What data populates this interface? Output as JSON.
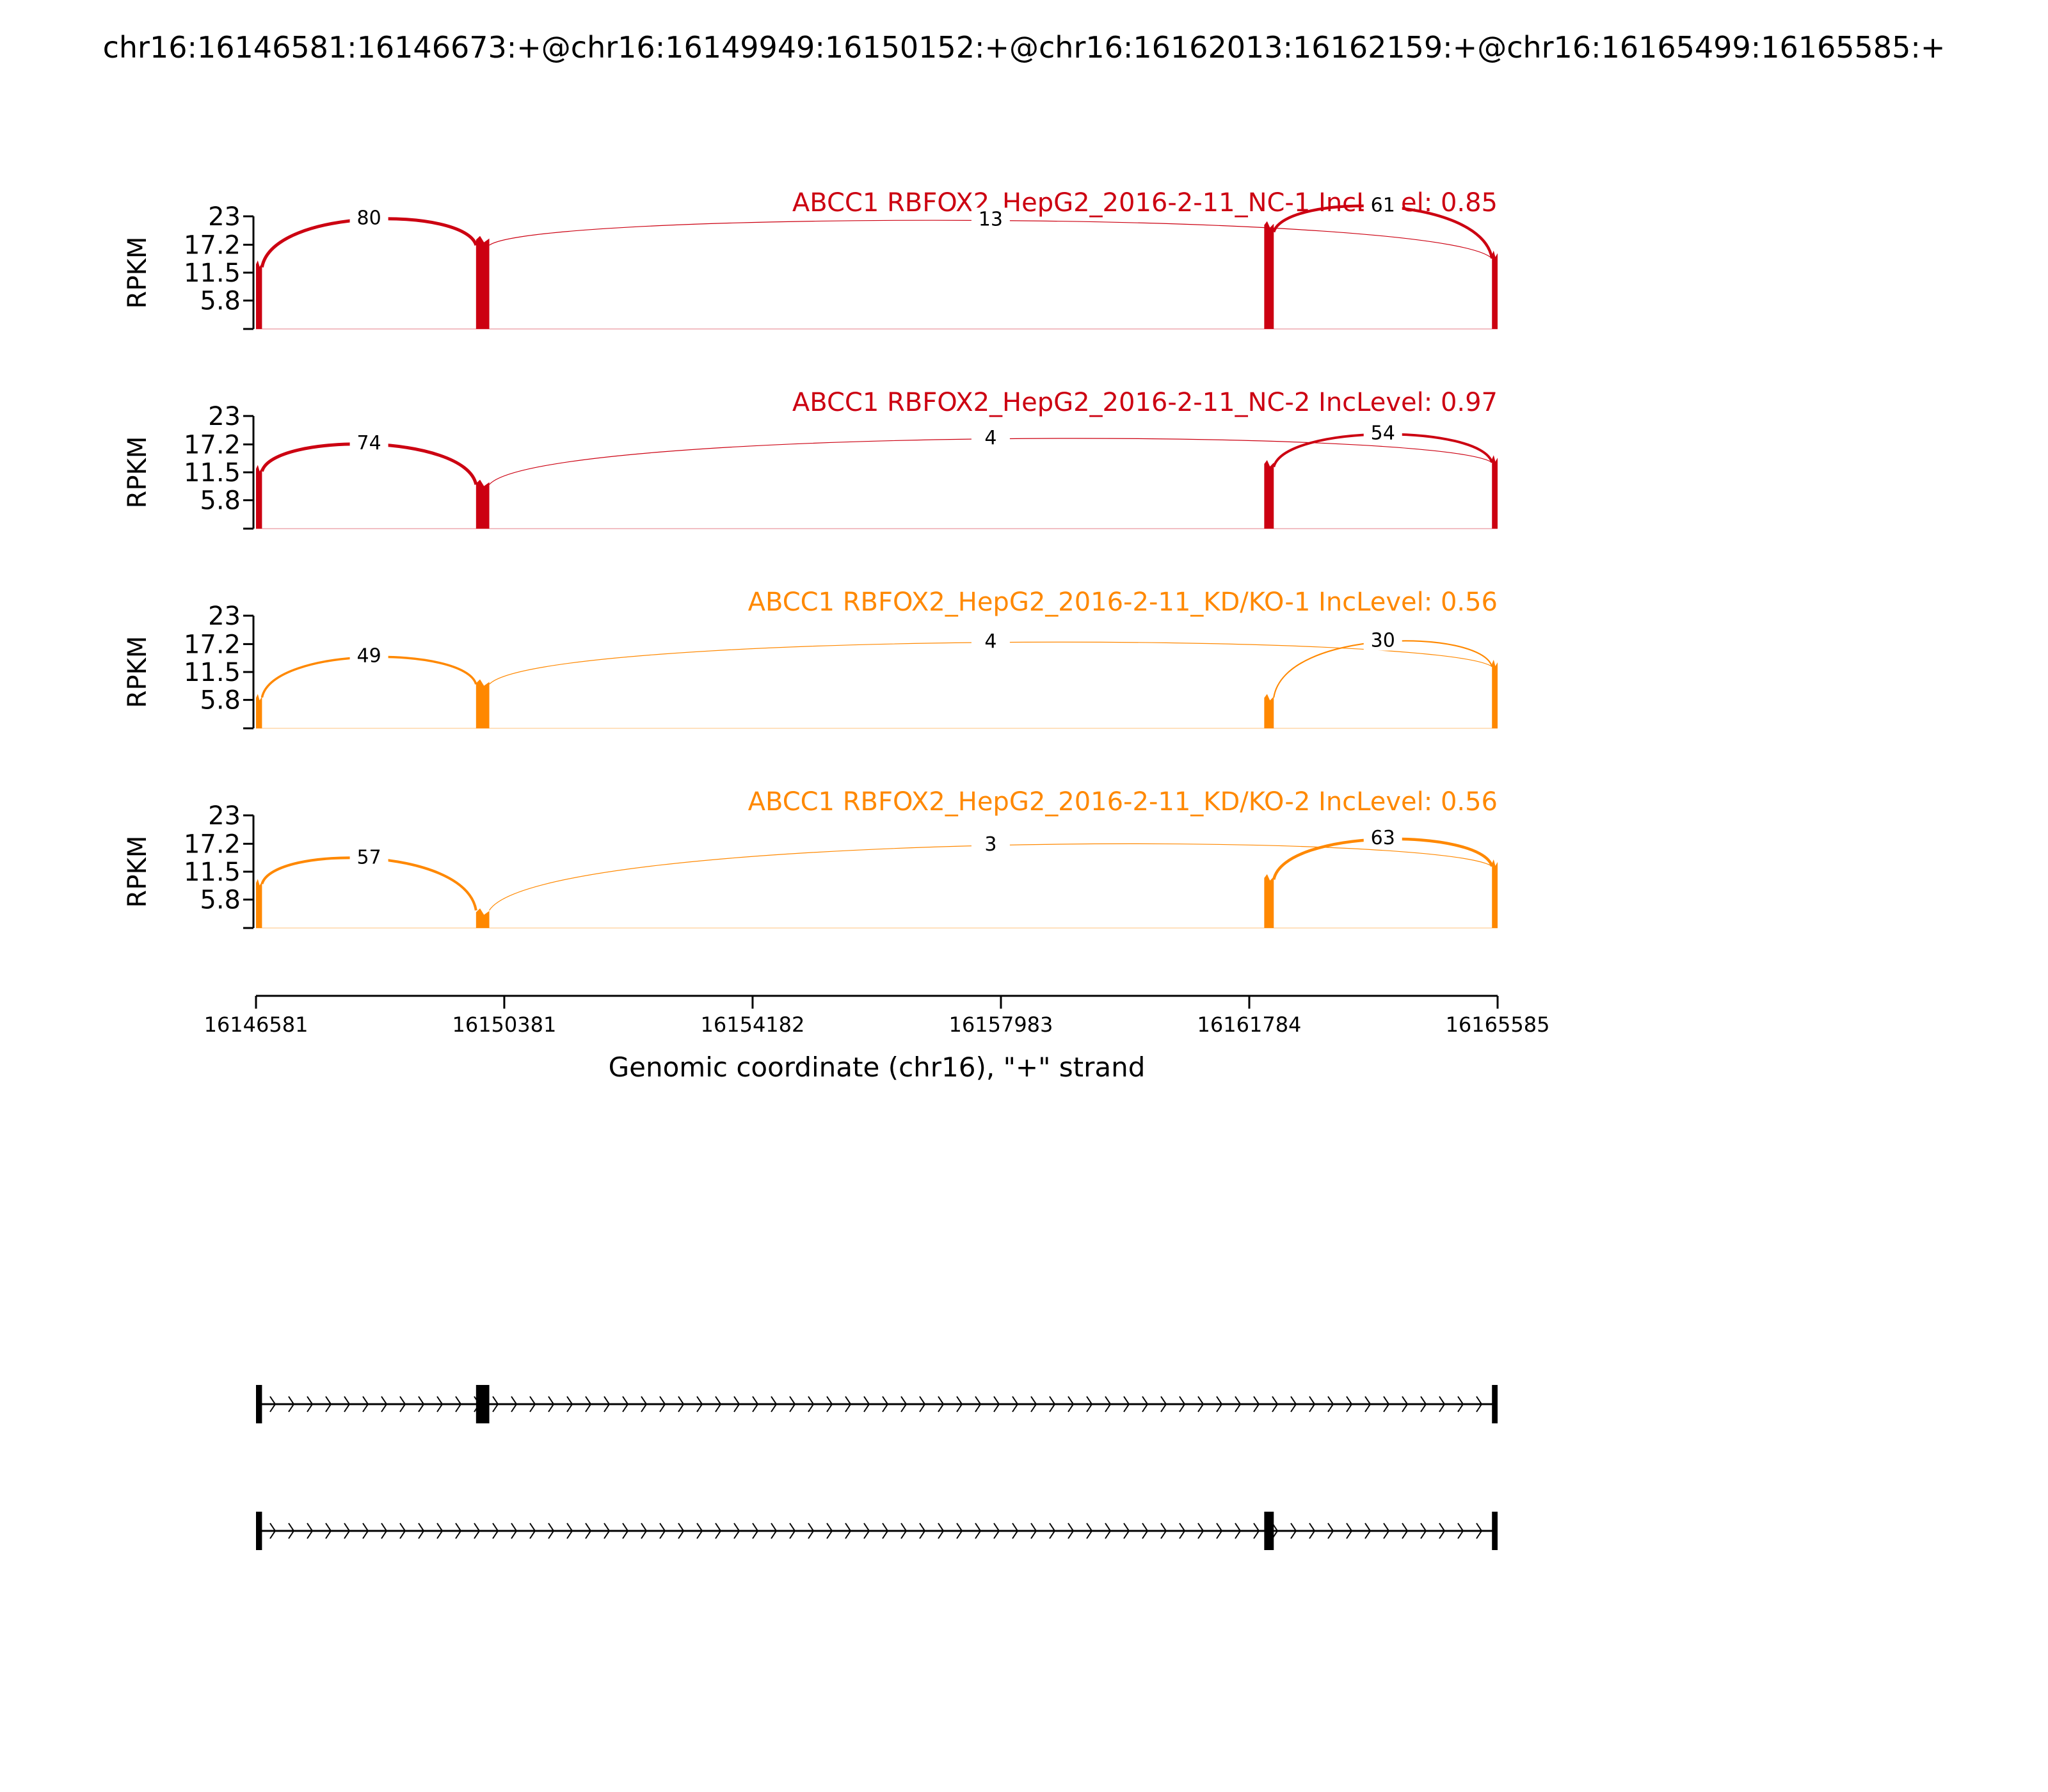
{
  "chart_data": {
    "type": "area",
    "title": "chr16:16146581:16146673:+@chr16:16149949:16150152:+@chr16:16162013:16162159:+@chr16:16165499:16165585:+",
    "xlabel": "Genomic coordinate (chr16), \"+\" strand",
    "ylabel": "RPKM",
    "xlim": [
      16146581,
      16165585
    ],
    "x_ticks": [
      "16146581",
      "16150381",
      "16154182",
      "16157983",
      "16161784",
      "16165585"
    ],
    "ylim": [
      0,
      23
    ],
    "y_ticks": [
      "23",
      "17.2",
      "11.5",
      "5.8"
    ],
    "series": [
      {
        "name": "ABCC1 RBFOX2_HepG2_2016-2-11_NC-1 IncLevel: 0.85",
        "color": "#cc0011",
        "exon_peaks": [
          {
            "start": 16146581,
            "end": 16146673,
            "rpkm": 14
          },
          {
            "start": 16149949,
            "end": 16150152,
            "rpkm": 19
          },
          {
            "start": 16162013,
            "end": 16162159,
            "rpkm": 22
          },
          {
            "start": 16165499,
            "end": 16165585,
            "rpkm": 16
          }
        ],
        "junctions": [
          {
            "from": 16146673,
            "to": 16149949,
            "reads": "80"
          },
          {
            "from": 16150152,
            "to": 16165499,
            "reads": "13"
          },
          {
            "from": 16162159,
            "to": 16165499,
            "reads": "61"
          }
        ]
      },
      {
        "name": "ABCC1 RBFOX2_HepG2_2016-2-11_NC-2 IncLevel: 0.97",
        "color": "#cc0011",
        "exon_peaks": [
          {
            "start": 16146581,
            "end": 16146673,
            "rpkm": 13
          },
          {
            "start": 16149949,
            "end": 16150152,
            "rpkm": 10
          },
          {
            "start": 16162013,
            "end": 16162159,
            "rpkm": 14
          },
          {
            "start": 16165499,
            "end": 16165585,
            "rpkm": 15
          }
        ],
        "junctions": [
          {
            "from": 16146673,
            "to": 16149949,
            "reads": "74"
          },
          {
            "from": 16150152,
            "to": 16165499,
            "reads": "4"
          },
          {
            "from": 16162159,
            "to": 16165499,
            "reads": "54"
          }
        ]
      },
      {
        "name": "ABCC1 RBFOX2_HepG2_2016-2-11_KD/KO-1 IncLevel: 0.56",
        "color": "#ff8800",
        "exon_peaks": [
          {
            "start": 16146581,
            "end": 16146673,
            "rpkm": 7
          },
          {
            "start": 16149949,
            "end": 16150152,
            "rpkm": 10
          },
          {
            "start": 16162013,
            "end": 16162159,
            "rpkm": 7
          },
          {
            "start": 16165499,
            "end": 16165585,
            "rpkm": 14
          }
        ],
        "junctions": [
          {
            "from": 16146673,
            "to": 16149949,
            "reads": "49"
          },
          {
            "from": 16150152,
            "to": 16165499,
            "reads": "4"
          },
          {
            "from": 16162159,
            "to": 16165499,
            "reads": "30"
          }
        ]
      },
      {
        "name": "ABCC1 RBFOX2_HepG2_2016-2-11_KD/KO-2 IncLevel: 0.56",
        "color": "#ff8800",
        "exon_peaks": [
          {
            "start": 16146581,
            "end": 16146673,
            "rpkm": 10
          },
          {
            "start": 16149949,
            "end": 16150152,
            "rpkm": 4
          },
          {
            "start": 16162013,
            "end": 16162159,
            "rpkm": 11
          },
          {
            "start": 16165499,
            "end": 16165585,
            "rpkm": 14
          }
        ],
        "junctions": [
          {
            "from": 16146673,
            "to": 16149949,
            "reads": "57"
          },
          {
            "from": 16150152,
            "to": 16165499,
            "reads": "3"
          },
          {
            "from": 16162159,
            "to": 16165499,
            "reads": "63"
          }
        ]
      }
    ],
    "isoforms": [
      {
        "exons": [
          [
            16146581,
            16146673
          ],
          [
            16149949,
            16150152
          ],
          [
            16165499,
            16165585
          ]
        ]
      },
      {
        "exons": [
          [
            16146581,
            16146673
          ],
          [
            16162013,
            16162159
          ],
          [
            16165499,
            16165585
          ]
        ]
      }
    ]
  }
}
